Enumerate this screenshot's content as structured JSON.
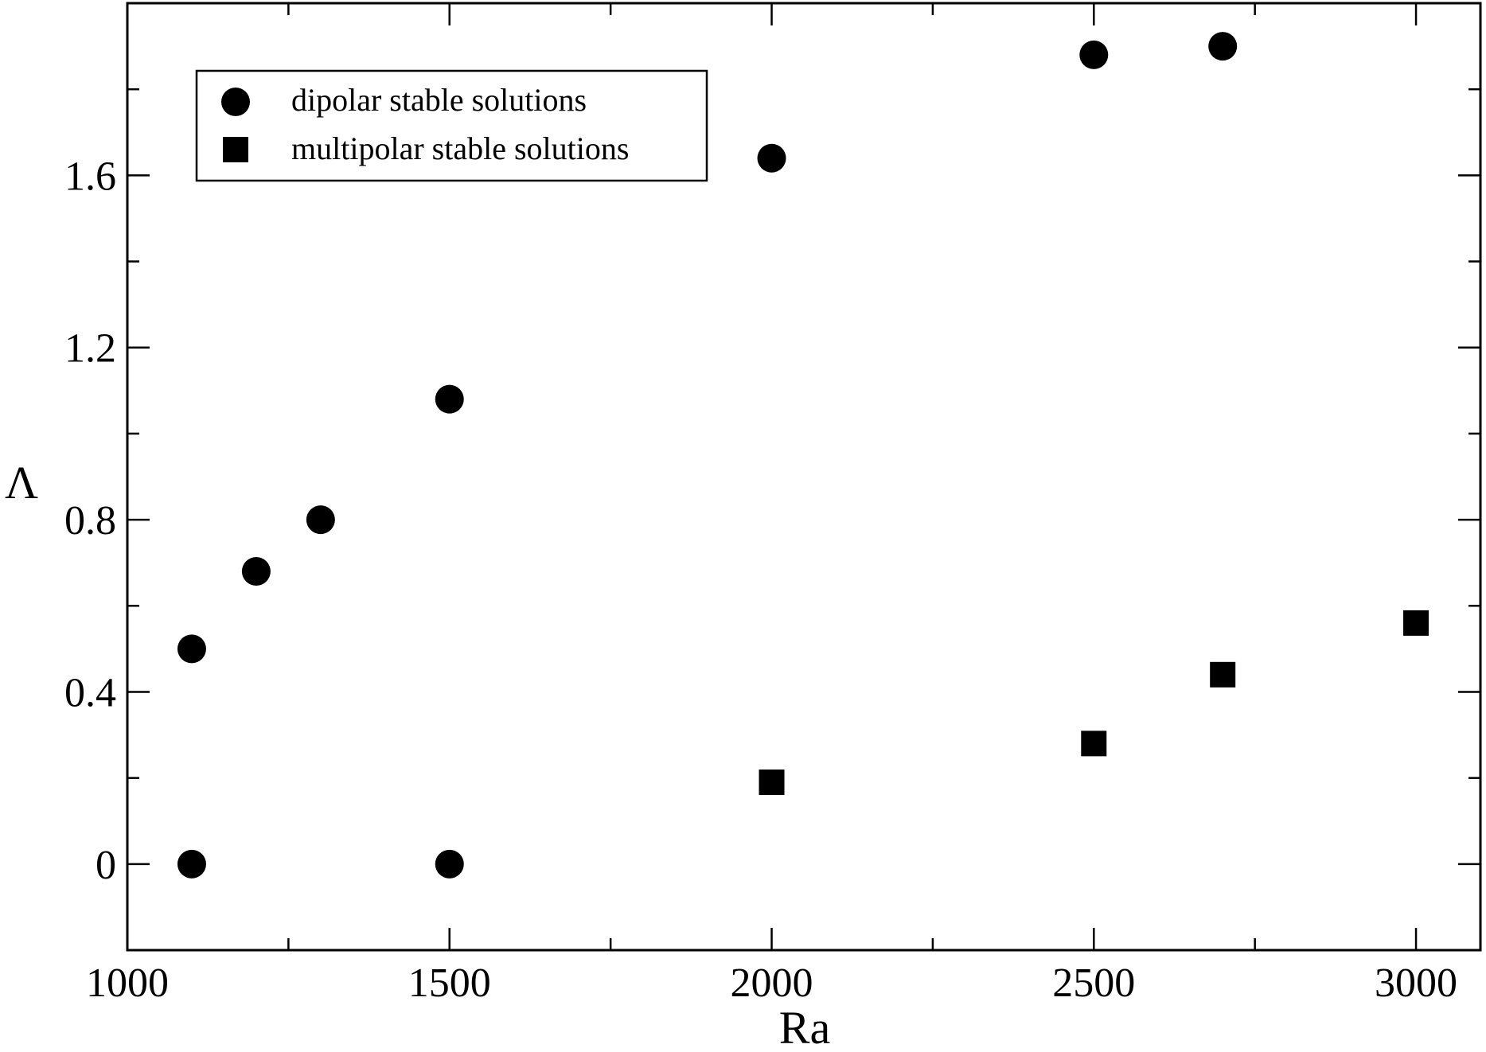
{
  "chart_data": {
    "type": "scatter",
    "title": "",
    "xlabel": "Ra",
    "ylabel": "Λ",
    "xlim": [
      1000,
      3100
    ],
    "ylim": [
      -0.2,
      2.0
    ],
    "x_major_ticks": [
      1000,
      1500,
      2000,
      2500,
      3000
    ],
    "x_tick_labels": [
      "1000",
      "1500",
      "2000",
      "2500",
      "3000"
    ],
    "x_minor_ticks": [
      1250,
      1750,
      2250,
      2750
    ],
    "y_major_ticks": [
      0,
      0.4,
      0.8,
      1.2,
      1.6
    ],
    "y_tick_labels": [
      "0",
      "0.4",
      "0.8",
      "1.2",
      "1.6"
    ],
    "y_minor_ticks": [
      0.2,
      0.6,
      1.0,
      1.4,
      1.8
    ],
    "grid": false,
    "legend_position": "top-left",
    "series": [
      {
        "name": "dipolar stable solutions",
        "marker": "circle",
        "color": "#000000",
        "points": [
          {
            "x": 1100,
            "y": 0.5
          },
          {
            "x": 1100,
            "y": 0.0
          },
          {
            "x": 1200,
            "y": 0.68
          },
          {
            "x": 1300,
            "y": 0.8
          },
          {
            "x": 1500,
            "y": 1.08
          },
          {
            "x": 1500,
            "y": 0.0
          },
          {
            "x": 2000,
            "y": 1.64
          },
          {
            "x": 2500,
            "y": 1.88
          },
          {
            "x": 2700,
            "y": 1.9
          }
        ]
      },
      {
        "name": "multipolar stable solutions",
        "marker": "square",
        "color": "#000000",
        "points": [
          {
            "x": 2000,
            "y": 0.19
          },
          {
            "x": 2500,
            "y": 0.28
          },
          {
            "x": 2700,
            "y": 0.44
          },
          {
            "x": 3000,
            "y": 0.56
          }
        ]
      }
    ]
  }
}
